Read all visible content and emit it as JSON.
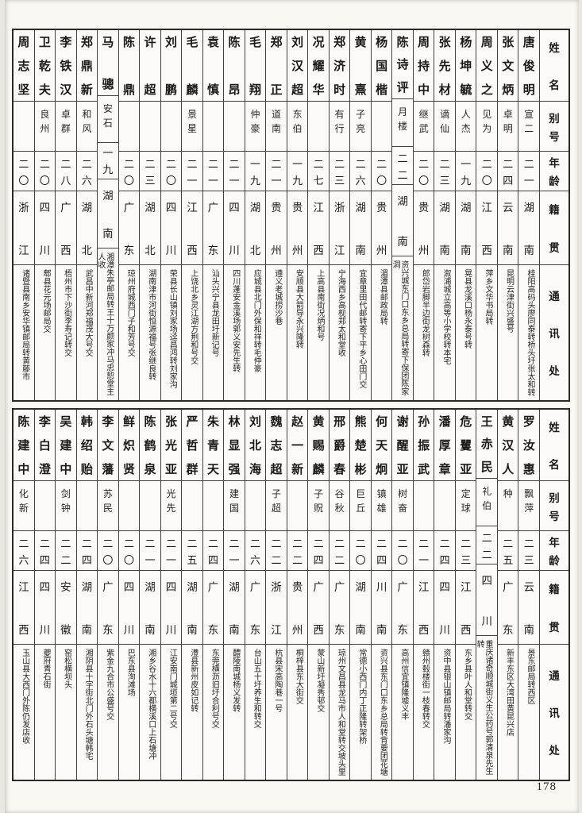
{
  "page_number": "178",
  "headers": {
    "name": "姓名",
    "alias": "别号",
    "age": "年龄",
    "origin": "籍贯",
    "address": "通讯处"
  },
  "sections": [
    {
      "entries": [
        {
          "name": "唐俊明",
          "alias": "宣二",
          "age": "二一",
          "origin": "湖南",
          "address": "桂阳高码头廖同泰转桥头圩张太和转"
        },
        {
          "name": "张文炳",
          "alias": "卓明",
          "age": "二四",
          "origin": "云南",
          "address": "昆明云津街兴盛号"
        },
        {
          "name": "周义之",
          "alias": "见为",
          "age": "二〇",
          "origin": "江西",
          "address": "萍乡文华书局转"
        },
        {
          "name": "杨坤毓",
          "alias": "人杰",
          "age": "一九",
          "origin": "湖南",
          "address": "晃县龙溪口杨永泰号转"
        },
        {
          "name": "张先材",
          "alias": "谪仙",
          "age": "二三",
          "origin": "湖南",
          "address": "溆浦城立高等小学校转本宅"
        },
        {
          "name": "周持中",
          "alias": "继武",
          "age": "二〇",
          "origin": "贵州",
          "address": "郎岱岩脚半边街龙树森转"
        },
        {
          "name": "陈诗评",
          "alias": "月楼",
          "age": "二二",
          "origin": "湖南",
          "address": "资兴城东门口东乡总局转寄下保团陈家洞"
        },
        {
          "name": "杨国楷",
          "alias": "",
          "age": "二〇",
          "origin": "贵州",
          "address": "湄潭县邮政局转"
        },
        {
          "name": "黄熹",
          "alias": "子亮",
          "age": "二六",
          "origin": "湖南",
          "address": "宜章里田代邮转寄下平乡心田门交"
        },
        {
          "name": "郑济时",
          "alias": "有行",
          "age": "二三",
          "origin": "浙江",
          "address": "宁海西乡高枧郑太和堂收"
        },
        {
          "name": "况耀华",
          "alias": "",
          "age": "二七",
          "origin": "江西",
          "address": "上高县南街况炳和号"
        },
        {
          "name": "刘汉超",
          "alias": "东伯",
          "age": "一九",
          "origin": "贵州",
          "address": "安顺县大箭导永兴隆转"
        },
        {
          "name": "郑正",
          "alias": "道南",
          "age": "二一",
          "origin": "贵州",
          "address": "遵义老城捞沙巷"
        },
        {
          "name": "毛翔",
          "alias": "仲豪",
          "age": "一九",
          "origin": "湖北",
          "address": "应城县北门外保和祥转毛仲豪"
        },
        {
          "name": "陈昂",
          "alias": "",
          "age": "二一",
          "origin": "四川",
          "address": "四川蓬安金溪场郭义安先生转"
        },
        {
          "name": "袁慎",
          "alias": "",
          "age": "二一",
          "origin": "广东",
          "address": "汕头兴宁县龙田圩新记号"
        },
        {
          "name": "毛麟",
          "alias": "景星",
          "age": "二一",
          "origin": "江西",
          "address": "上饶北乡灵江湖方荆和号交"
        },
        {
          "name": "刘鹏",
          "alias": "",
          "age": "二〇",
          "origin": "四川",
          "address": "荣县长山镇刘家场迳昌鸿转刘家沟"
        },
        {
          "name": "许超",
          "alias": "",
          "age": "二三",
          "origin": "湖北",
          "address": "湖南津市河街恒源福号张继良转"
        },
        {
          "name": "陈鼎",
          "alias": "",
          "age": "二〇",
          "origin": "广东",
          "address": "琼州府城西门子和芳号交"
        },
        {
          "name": "马骢",
          "alias": "安石",
          "age": "一九",
          "origin": "湖南",
          "address": "湘潭朱亭邮局转王十万颜家冲马忠恕堂主人收"
        },
        {
          "name": "郑鼎新",
          "alias": "和风",
          "age": "二六",
          "origin": "湖北",
          "address": "武昌中新河郑福茂大号交"
        },
        {
          "name": "李铁汉",
          "alias": "卓群",
          "age": "二八",
          "origin": "广西",
          "address": "梧州市下沙街李寿记转交"
        },
        {
          "name": "卫乾夫",
          "alias": "良州",
          "age": "二〇",
          "origin": "四川",
          "address": "郫县花元场邮局交"
        },
        {
          "name": "周志坚",
          "alias": "",
          "age": "二〇",
          "origin": "浙江",
          "address": "诸暨县南乡安华镇邮局转黄藤市"
        }
      ]
    },
    {
      "entries": [
        {
          "name": "罗汝惠",
          "alias": "飘萍",
          "age": "二三",
          "origin": "云南",
          "address": "景东邮局转西区"
        },
        {
          "name": "黄汉人",
          "alias": "种",
          "age": "二五",
          "origin": "广东",
          "address": "新丰东区大湾田黄昆兴店"
        },
        {
          "name": "王赤民",
          "alias": "礼伯",
          "age": "二二",
          "origin": "四川",
          "address": "重庆诸奇顺城街义生公药号郭清泉先生转"
        },
        {
          "name": "危矍亚",
          "alias": "定球",
          "age": "二三",
          "origin": "江西",
          "address": "东乡县叶人和堂转交"
        },
        {
          "name": "潘厚章",
          "alias": "",
          "age": "二四",
          "origin": "四川",
          "address": "资中县银山镇邮局转潘家沟"
        },
        {
          "name": "孙振武",
          "alias": "",
          "age": "二一",
          "origin": "江西",
          "address": "赣州毂楼街一枝春转交"
        },
        {
          "name": "谢醒亚",
          "alias": "树奋",
          "age": "二〇",
          "origin": "广东",
          "address": "高州信宜镇隆墟义丰"
        },
        {
          "name": "何天炯",
          "alias": "镇雄",
          "age": "二四",
          "origin": "川南",
          "address": "资兴县东门口东乡总局转背要团花塘"
        },
        {
          "name": "熊楚彬",
          "alias": "巨丘",
          "age": "二〇",
          "origin": "湖南",
          "address": "常德小西门内丁正隆转架桥"
        },
        {
          "name": "邢爵春",
          "alias": "谷秋",
          "age": "二二",
          "origin": "广东",
          "address": "琼州文昌县龙马市人和堂转交坡头里"
        },
        {
          "name": "黄赐麟",
          "alias": "子贶",
          "age": "二四",
          "origin": "广西",
          "address": "蒙山新圩凝秀邨交"
        },
        {
          "name": "赵一新",
          "alias": "",
          "age": "二二",
          "origin": "贵州",
          "address": "桐梓县东大街交"
        },
        {
          "name": "魏志超",
          "alias": "子超",
          "age": "二二",
          "origin": "浙江",
          "address": "杭县宋高陶巷一号"
        },
        {
          "name": "刘北海",
          "alias": "",
          "age": "二六",
          "origin": "广东",
          "address": "台山五十圩养生和转交"
        },
        {
          "name": "林显强",
          "alias": "建国",
          "age": "二一",
          "origin": "湖南",
          "address": "醴陵南城杨义发转"
        },
        {
          "name": "朱青天",
          "alias": "",
          "age": "二四",
          "origin": "广东",
          "address": "东莞横沥旧圩合利号交"
        },
        {
          "name": "严哲群",
          "alias": "",
          "age": "二五",
          "origin": "湖南",
          "address": "澧县新州皮如记转"
        },
        {
          "name": "张光亚",
          "alias": "光先",
          "age": "二一",
          "origin": "四川",
          "address": "江安南门城垣第二号交"
        },
        {
          "name": "陈鹤泉",
          "alias": "",
          "age": "二一",
          "origin": "湖南",
          "address": "湘乡谷水十六都横溪口上石塘冲"
        },
        {
          "name": "鲜炽贤",
          "alias": "",
          "age": "二〇",
          "origin": "四川",
          "address": "巴东县洵滩场"
        },
        {
          "name": "李文藩",
          "alias": "苏民",
          "age": "二〇",
          "origin": "广东",
          "address": "紫金九合市公盛号交"
        },
        {
          "name": "韩绍贻",
          "alias": "",
          "age": "二四",
          "origin": "湖南",
          "address": "湘阴县十字街北门外石头塘韩宅"
        },
        {
          "name": "吴建中",
          "alias": "剑钟",
          "age": "二二",
          "origin": "安徽",
          "address": "窑松横坝头"
        },
        {
          "name": "李白澄",
          "alias": "",
          "age": "二四",
          "origin": "四川",
          "address": "夔府青石街"
        },
        {
          "name": "陈建中",
          "alias": "化新",
          "age": "二六",
          "origin": "江西",
          "address": "玉山县大西门外陈仍发店收"
        }
      ]
    }
  ]
}
